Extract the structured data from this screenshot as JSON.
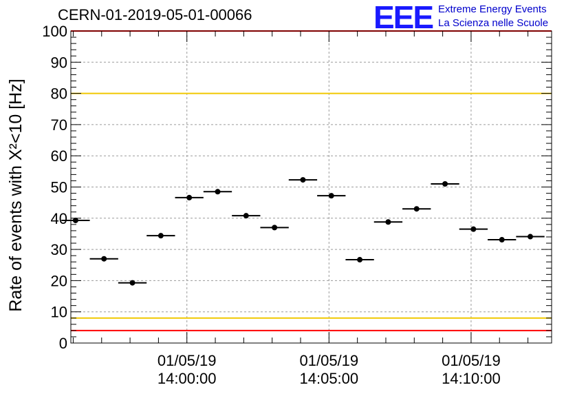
{
  "header": {
    "title": "CERN-01-2019-05-01-00066",
    "logo_text": "EEE",
    "logo_line1": "Extreme Energy Events",
    "logo_line2": "La Scienza nelle Scuole"
  },
  "chart_data": {
    "type": "scatter",
    "title": "CERN-01-2019-05-01-00066",
    "ylabel": "Rate of events with X²<10 [Hz]",
    "ylim": [
      0,
      100
    ],
    "y_ticks": [
      0,
      10,
      20,
      30,
      40,
      50,
      60,
      70,
      80,
      90,
      100
    ],
    "x_ticks": [
      {
        "t": "2019-05-01 14:00:00",
        "date": "01/05/19",
        "time": "14:00:00"
      },
      {
        "t": "2019-05-01 14:05:00",
        "date": "01/05/19",
        "time": "14:05:00"
      },
      {
        "t": "2019-05-01 14:10:00",
        "date": "01/05/19",
        "time": "14:10:00"
      }
    ],
    "xlim": [
      "2019-05-01 13:55:55",
      "2019-05-01 14:12:50"
    ],
    "grid": true,
    "points": [
      {
        "t": "2019-05-01 13:56:05",
        "y": 39.3
      },
      {
        "t": "2019-05-01 13:57:05",
        "y": 27.0
      },
      {
        "t": "2019-05-01 13:58:05",
        "y": 19.3
      },
      {
        "t": "2019-05-01 13:59:05",
        "y": 34.4
      },
      {
        "t": "2019-05-01 14:00:05",
        "y": 46.6
      },
      {
        "t": "2019-05-01 14:01:05",
        "y": 48.5
      },
      {
        "t": "2019-05-01 14:02:05",
        "y": 40.8
      },
      {
        "t": "2019-05-01 14:03:05",
        "y": 37.0
      },
      {
        "t": "2019-05-01 14:04:05",
        "y": 52.3
      },
      {
        "t": "2019-05-01 14:05:05",
        "y": 47.2
      },
      {
        "t": "2019-05-01 14:06:05",
        "y": 26.7
      },
      {
        "t": "2019-05-01 14:07:05",
        "y": 38.8
      },
      {
        "t": "2019-05-01 14:08:05",
        "y": 43.0
      },
      {
        "t": "2019-05-01 14:09:05",
        "y": 51.0
      },
      {
        "t": "2019-05-01 14:10:05",
        "y": 36.5
      },
      {
        "t": "2019-05-01 14:11:05",
        "y": 33.1
      },
      {
        "t": "2019-05-01 14:12:05",
        "y": 34.1
      }
    ],
    "x_error_seconds": 30,
    "reference_lines": [
      {
        "y": 100,
        "color": "#ff0000"
      },
      {
        "y": 80,
        "color": "#f0c800"
      },
      {
        "y": 8,
        "color": "#f0c800"
      },
      {
        "y": 4,
        "color": "#ff0000"
      }
    ],
    "colors": {
      "points": "#000000",
      "grid": "#9a9a9a",
      "logo": "#1a1aff",
      "logo_text": "#0000cc"
    }
  }
}
